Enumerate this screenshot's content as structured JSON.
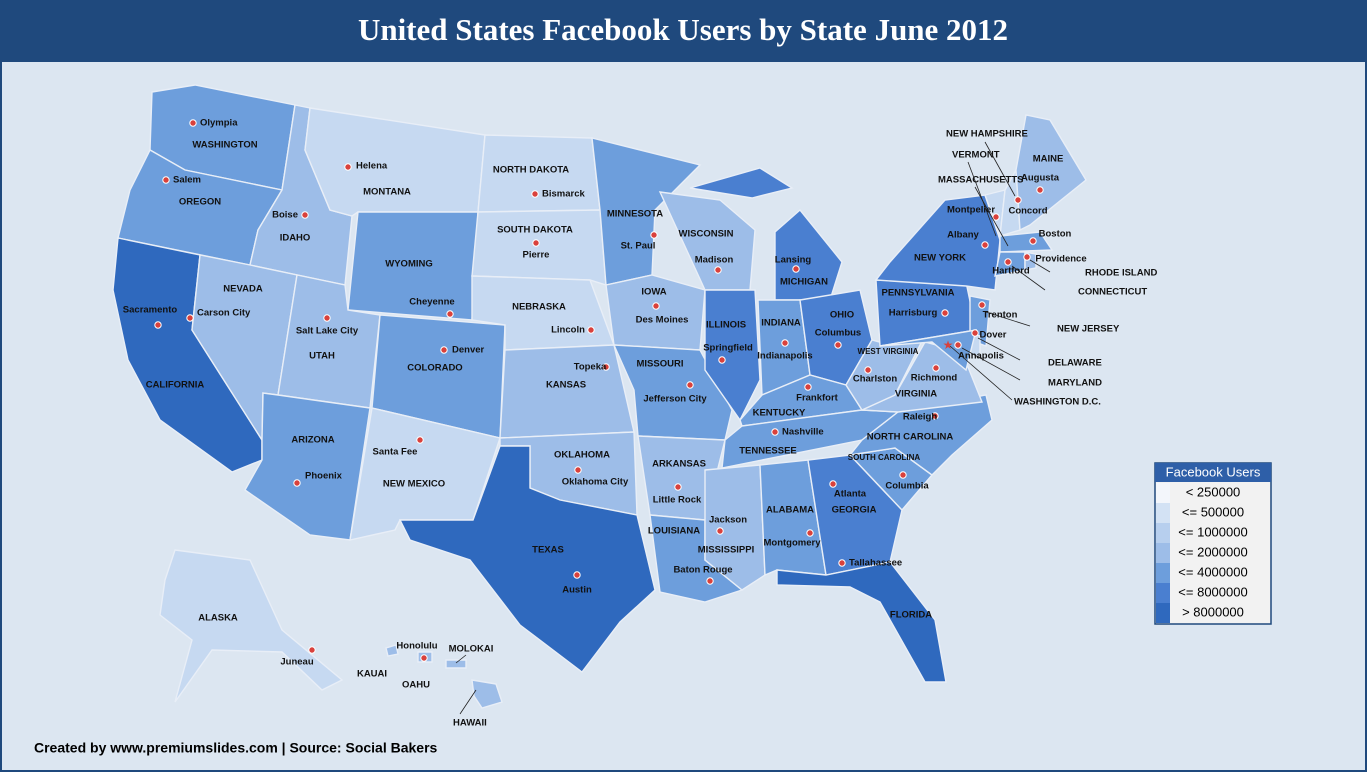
{
  "title": "United States Facebook Users by State June 2012",
  "credit": "Created by www.premiumslides.com | Source: Social Bakers",
  "legend": {
    "title": "Facebook Users",
    "items": [
      {
        "label": "< 250000",
        "color": "#f3f6fb"
      },
      {
        "label": "<= 500000",
        "color": "#d3e2f4"
      },
      {
        "label": "<= 1000000",
        "color": "#b7cfee"
      },
      {
        "label": "<= 2000000",
        "color": "#9dbde8"
      },
      {
        "label": "<= 4000000",
        "color": "#6d9edc"
      },
      {
        "label": "<= 8000000",
        "color": "#4a7fd0"
      },
      {
        "label": "> 8000000",
        "color": "#2f69be"
      }
    ]
  },
  "states": [
    {
      "name": "WASHINGTON",
      "capital": "Olympia",
      "color": "#6d9edc"
    },
    {
      "name": "OREGON",
      "capital": "Salem",
      "color": "#6d9edc"
    },
    {
      "name": "CALIFORNIA",
      "capital": "Sacramento",
      "color": "#2f69be"
    },
    {
      "name": "IDAHO",
      "capital": "Boise",
      "color": "#9dbde8"
    },
    {
      "name": "NEVADA",
      "capital": "Carson City",
      "color": "#9dbde8"
    },
    {
      "name": "MONTANA",
      "capital": "Helena",
      "color": "#c6d9f1"
    },
    {
      "name": "WYOMING",
      "capital": "Cheyenne",
      "color": "#6d9edc"
    },
    {
      "name": "UTAH",
      "capital": "Salt Lake City",
      "color": "#9dbde8"
    },
    {
      "name": "ARIZONA",
      "capital": "Phoenix",
      "color": "#6d9edc"
    },
    {
      "name": "COLORADO",
      "capital": "Denver",
      "color": "#6d9edc"
    },
    {
      "name": "NEW MEXICO",
      "capital": "Santa Fee",
      "color": "#c6d9f1"
    },
    {
      "name": "NORTH DAKOTA",
      "capital": "Bismarck",
      "color": "#c6d9f1"
    },
    {
      "name": "SOUTH DAKOTA",
      "capital": "Pierre",
      "color": "#c6d9f1"
    },
    {
      "name": "NEBRASKA",
      "capital": "Lincoln",
      "color": "#c6d9f1"
    },
    {
      "name": "KANSAS",
      "capital": "Topeka",
      "color": "#9dbde8"
    },
    {
      "name": "OKLAHOMA",
      "capital": "Oklahoma City",
      "color": "#9dbde8"
    },
    {
      "name": "TEXAS",
      "capital": "Austin",
      "color": "#2f69be"
    },
    {
      "name": "MINNESOTA",
      "capital": "St. Paul",
      "color": "#6d9edc"
    },
    {
      "name": "IOWA",
      "capital": "Des Moines",
      "color": "#9dbde8"
    },
    {
      "name": "MISSOURI",
      "capital": "Jefferson City",
      "color": "#6d9edc"
    },
    {
      "name": "ARKANSAS",
      "capital": "Little Rock",
      "color": "#9dbde8"
    },
    {
      "name": "LOUISIANA",
      "capital": "Baton Rouge",
      "color": "#6d9edc"
    },
    {
      "name": "WISCONSIN",
      "capital": "Madison",
      "color": "#9dbde8"
    },
    {
      "name": "ILLINOIS",
      "capital": "Springfield",
      "color": "#4a7fd0"
    },
    {
      "name": "MICHIGAN",
      "capital": "Lansing",
      "color": "#4a7fd0"
    },
    {
      "name": "INDIANA",
      "capital": "Indianapolis",
      "color": "#6d9edc"
    },
    {
      "name": "OHIO",
      "capital": "Columbus",
      "color": "#4a7fd0"
    },
    {
      "name": "KENTUCKY",
      "capital": "Frankfort",
      "color": "#6d9edc"
    },
    {
      "name": "TENNESSEE",
      "capital": "Nashville",
      "color": "#6d9edc"
    },
    {
      "name": "MISSISSIPPI",
      "capital": "Jackson",
      "color": "#9dbde8"
    },
    {
      "name": "ALABAMA",
      "capital": "Montgomery",
      "color": "#6d9edc"
    },
    {
      "name": "GEORGIA",
      "capital": "Atlanta",
      "color": "#4a7fd0"
    },
    {
      "name": "FLORIDA",
      "capital": "Tallahassee",
      "color": "#2f69be"
    },
    {
      "name": "SOUTH CAROLINA",
      "capital": "Columbia",
      "color": "#6d9edc"
    },
    {
      "name": "NORTH CAROLINA",
      "capital": "Raleigh",
      "color": "#6d9edc"
    },
    {
      "name": "VIRGINIA",
      "capital": "Richmond",
      "color": "#9dbde8"
    },
    {
      "name": "WEST VIRGINIA",
      "capital": "Charlston",
      "color": "#9dbde8"
    },
    {
      "name": "PENNSYLVANIA",
      "capital": "Harrisburg",
      "color": "#4a7fd0"
    },
    {
      "name": "NEW YORK",
      "capital": "Albany",
      "color": "#4a7fd0"
    },
    {
      "name": "NEW JERSEY",
      "capital": "Trenton",
      "color": "#6d9edc"
    },
    {
      "name": "DELAWARE",
      "capital": "Dover",
      "color": "#c6d9f1"
    },
    {
      "name": "MARYLAND",
      "capital": "Annapolis",
      "color": "#6d9edc"
    },
    {
      "name": "VERMONT",
      "capital": "Montpelier",
      "color": "#c6d9f1"
    },
    {
      "name": "NEW HAMPSHIRE",
      "capital": "Concord",
      "color": "#c6d9f1"
    },
    {
      "name": "MAINE",
      "capital": "Augusta",
      "color": "#9dbde8"
    },
    {
      "name": "MASSACHUSETTS",
      "capital": "Boston",
      "color": "#6d9edc"
    },
    {
      "name": "CONNECTICUT",
      "capital": "Hartford",
      "color": "#6d9edc"
    },
    {
      "name": "RHODE ISLAND",
      "capital": "Providence",
      "color": "#9dbde8"
    },
    {
      "name": "ALASKA",
      "capital": "Juneau",
      "color": "#c6d9f1"
    },
    {
      "name": "HAWAII",
      "capital": "Honolulu",
      "color": "#9dbde8"
    }
  ],
  "district": "WASHINGTON D.C.",
  "islands": [
    "KAUAI",
    "OAHU",
    "MOLOKAI"
  ]
}
